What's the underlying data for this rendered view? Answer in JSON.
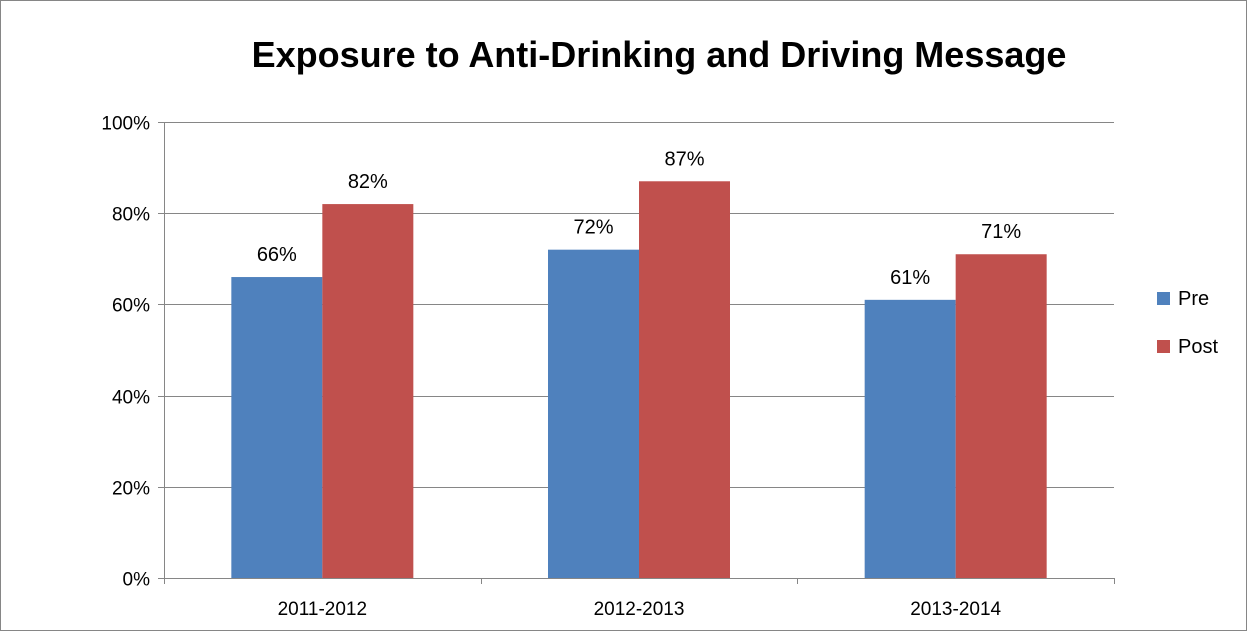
{
  "chart_data": {
    "type": "bar",
    "title": "Exposure to Anti-Drinking and Driving Message",
    "xlabel": "",
    "ylabel": "",
    "categories": [
      "2011-2012",
      "2012-2013",
      "2013-2014"
    ],
    "series": [
      {
        "name": "Pre",
        "values": [
          66,
          72,
          61
        ],
        "labels": [
          "66%",
          "72%",
          "61%"
        ],
        "color": "#4f81bd"
      },
      {
        "name": "Post",
        "values": [
          82,
          87,
          71
        ],
        "labels": [
          "82%",
          "87%",
          "71%"
        ],
        "color": "#c0504d"
      }
    ],
    "ylim": [
      0,
      100
    ],
    "yticks": [
      0,
      20,
      40,
      60,
      80,
      100
    ],
    "ytick_labels": [
      "0%",
      "20%",
      "40%",
      "60%",
      "80%",
      "100%"
    ],
    "grid": true,
    "legend_position": "right",
    "colors": {
      "gridline": "#868686",
      "frame": "#868686"
    }
  }
}
